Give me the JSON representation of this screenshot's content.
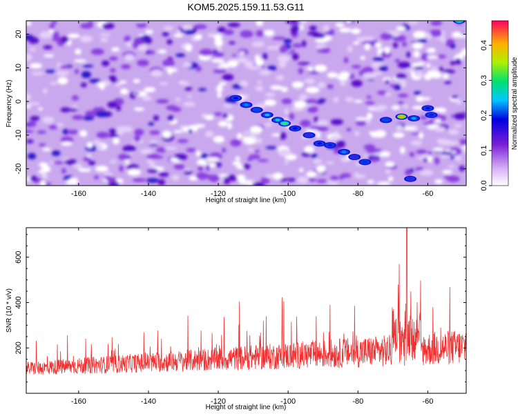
{
  "title": "KOM5.2025.159.11.53.G11",
  "chart_data": [
    {
      "type": "heatmap",
      "xlabel": "Height of straight line (km)",
      "ylabel": "Frequency (Hz)",
      "xlim": [
        -175,
        -49
      ],
      "ylim": [
        -25,
        24
      ],
      "xticks": [
        -160,
        -140,
        -120,
        -100,
        -80,
        -60
      ],
      "yticks": [
        -20,
        -10,
        0,
        10,
        20
      ],
      "colorbar": {
        "label": "Normalized spectral amplitude",
        "range": [
          0,
          0.47
        ],
        "ticks": [
          0.0,
          0.1,
          0.2,
          0.3,
          0.4
        ]
      },
      "ridge": [
        {
          "x": -115,
          "y": 1,
          "v": 0.18
        },
        {
          "x": -112,
          "y": -1,
          "v": 0.22
        },
        {
          "x": -109,
          "y": -2.5,
          "v": 0.2
        },
        {
          "x": -106,
          "y": -4,
          "v": 0.24
        },
        {
          "x": -103,
          "y": -5.5,
          "v": 0.26
        },
        {
          "x": -101,
          "y": -6.5,
          "v": 0.31
        },
        {
          "x": -98,
          "y": -8,
          "v": 0.18
        },
        {
          "x": -94,
          "y": -10,
          "v": 0.14
        },
        {
          "x": -91,
          "y": -12.5,
          "v": 0.17
        },
        {
          "x": -88,
          "y": -13,
          "v": 0.16
        },
        {
          "x": -84,
          "y": -15,
          "v": 0.22
        },
        {
          "x": -81,
          "y": -16.5,
          "v": 0.14
        },
        {
          "x": -78,
          "y": -18,
          "v": 0.19
        },
        {
          "x": -65,
          "y": -23,
          "v": 0.14
        }
      ],
      "cluster": [
        {
          "x": -72,
          "y": -5.5,
          "v": 0.2
        },
        {
          "x": -67.5,
          "y": -4.5,
          "v": 0.4
        },
        {
          "x": -64,
          "y": -5,
          "v": 0.23
        },
        {
          "x": -60,
          "y": -2,
          "v": 0.17
        },
        {
          "x": -59,
          "y": -4,
          "v": 0.16
        },
        {
          "x": -51,
          "y": 24,
          "v": 0.3
        }
      ]
    },
    {
      "type": "line",
      "xlabel": "Height of straight line (km)",
      "ylabel": "SNR (10 * v/v)",
      "xlim": [
        -175,
        -49
      ],
      "ylim": [
        0,
        730
      ],
      "xticks": [
        -160,
        -140,
        -120,
        -100,
        -80,
        -60
      ],
      "yticks": [
        200,
        400,
        600
      ],
      "series_color": "#f03030",
      "peak": {
        "x": -66,
        "y": 730
      }
    }
  ]
}
